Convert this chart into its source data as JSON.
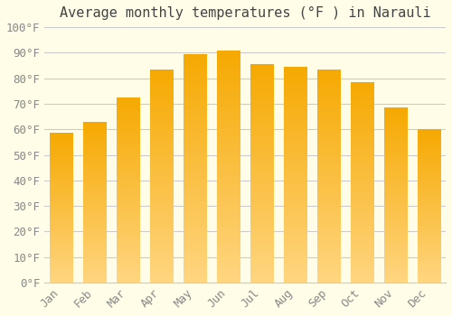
{
  "title": "Average monthly temperatures (°F ) in Narauli",
  "months": [
    "Jan",
    "Feb",
    "Mar",
    "Apr",
    "May",
    "Jun",
    "Jul",
    "Aug",
    "Sep",
    "Oct",
    "Nov",
    "Dec"
  ],
  "values": [
    58.5,
    63,
    72.5,
    83.5,
    89.5,
    91,
    85.5,
    84.5,
    83.5,
    78.5,
    68.5,
    60
  ],
  "bar_color_bottom": "#FFD580",
  "bar_color_top": "#F5A800",
  "background_color": "#FFFDE7",
  "grid_color": "#CCCCCC",
  "text_color": "#888888",
  "ylim": [
    0,
    100
  ],
  "ytick_step": 10,
  "title_fontsize": 11,
  "tick_fontsize": 9,
  "font_family": "monospace",
  "bar_width": 0.7,
  "figsize": [
    5.0,
    3.5
  ],
  "dpi": 100
}
